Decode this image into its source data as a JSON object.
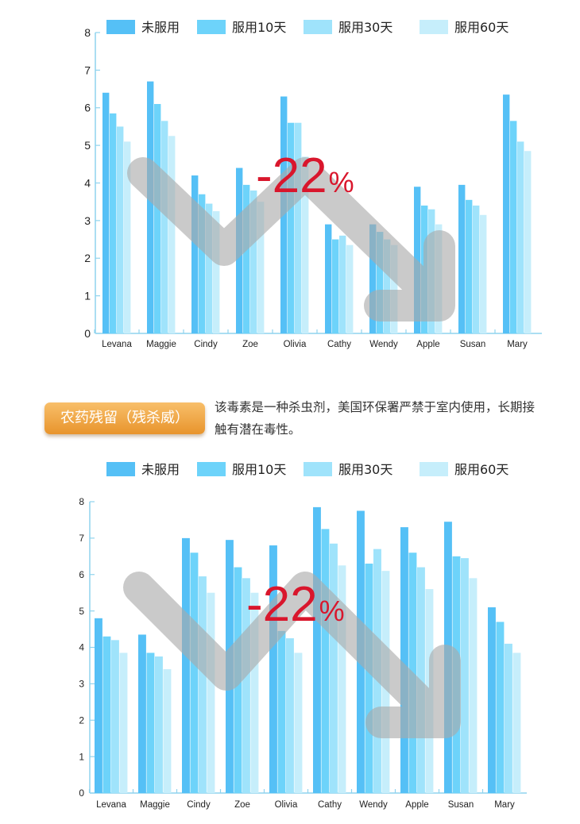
{
  "colors": {
    "series": [
      "#55c0f6",
      "#6dd3fa",
      "#9fe3fb",
      "#c6eefb"
    ],
    "axis": "#8fd3ee",
    "arrow": "#aaaaaa",
    "highlight": "#d9162c",
    "badge": "#f0a544"
  },
  "chart1_overlay": {
    "pct_number": "-22",
    "pct_sign": "%",
    "arrow": "down-trend-arrow"
  },
  "chart2_overlay": {
    "pct_number": "-22",
    "pct_sign": "%",
    "arrow": "down-trend-arrow"
  },
  "note": {
    "badge": "农药残留（残杀威）",
    "text": "该毒素是一种杀虫剂，美国环保署严禁于室内使用，长期接触有潜在毒性。"
  },
  "chart_data": [
    {
      "type": "bar",
      "title": "",
      "xlabel": "",
      "ylabel": "",
      "ylim": [
        0,
        8
      ],
      "yticks": [
        "0",
        "1",
        "2",
        "3",
        "4",
        "5",
        "6",
        "7",
        "8"
      ],
      "legend_position": "top",
      "grid": false,
      "categories": [
        "Levana",
        "Maggie",
        "Cindy",
        "Zoe",
        "Olivia",
        "Cathy",
        "Wendy",
        "Apple",
        "Susan",
        "Mary"
      ],
      "series": [
        {
          "name": "未服用",
          "values": [
            6.4,
            6.7,
            4.2,
            4.4,
            6.3,
            2.9,
            2.9,
            3.9,
            3.95,
            6.35
          ]
        },
        {
          "name": "服用10天",
          "values": [
            5.85,
            6.1,
            3.7,
            3.95,
            5.6,
            2.5,
            2.7,
            3.4,
            3.55,
            5.65
          ]
        },
        {
          "name": "服用30天",
          "values": [
            5.5,
            5.65,
            3.45,
            3.8,
            5.6,
            2.6,
            2.5,
            3.3,
            3.4,
            5.1
          ]
        },
        {
          "name": "服用60天",
          "values": [
            5.1,
            5.25,
            3.25,
            3.5,
            4.7,
            2.35,
            2.35,
            2.9,
            3.15,
            4.85
          ]
        }
      ]
    },
    {
      "type": "bar",
      "title": "",
      "xlabel": "",
      "ylabel": "",
      "ylim": [
        0,
        8
      ],
      "yticks": [
        "0",
        "1",
        "2",
        "3",
        "4",
        "5",
        "6",
        "7",
        "8"
      ],
      "legend_position": "top",
      "grid": false,
      "categories": [
        "Levana",
        "Maggie",
        "Cindy",
        "Zoe",
        "Olivia",
        "Cathy",
        "Wendy",
        "Apple",
        "Susan",
        "Mary"
      ],
      "series": [
        {
          "name": "未服用",
          "values": [
            4.8,
            4.35,
            7.0,
            6.95,
            6.8,
            7.85,
            7.75,
            7.3,
            7.45,
            5.1
          ]
        },
        {
          "name": "服用10天",
          "values": [
            4.3,
            3.85,
            6.6,
            6.2,
            4.45,
            7.25,
            6.3,
            6.6,
            6.5,
            4.7
          ]
        },
        {
          "name": "服用30天",
          "values": [
            4.2,
            3.75,
            5.95,
            5.9,
            4.25,
            6.85,
            6.7,
            6.2,
            6.45,
            4.1
          ]
        },
        {
          "name": "服用60天",
          "values": [
            3.85,
            3.4,
            5.5,
            5.5,
            3.85,
            6.25,
            6.1,
            5.6,
            5.9,
            3.85
          ]
        }
      ]
    }
  ]
}
